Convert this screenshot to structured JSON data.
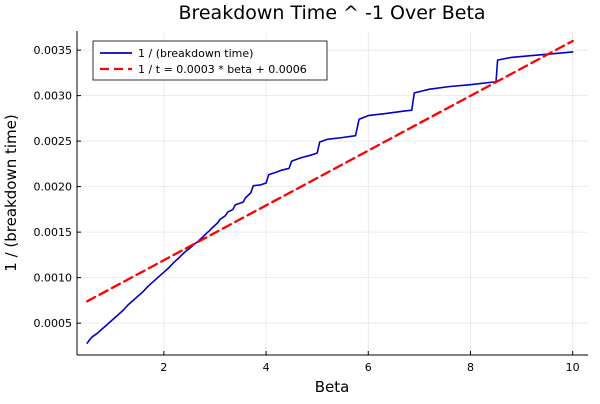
{
  "chart_data": {
    "type": "line",
    "title": "Breakdown Time ^ -1 Over Beta",
    "xlabel": "Beta",
    "ylabel": "1 / (breakdown time)",
    "xlim": [
      0.3,
      10.3
    ],
    "ylim": [
      0.00015,
      0.00371
    ],
    "x_ticks": [
      2,
      4,
      6,
      8,
      10
    ],
    "x_tick_labels": [
      "2",
      "4",
      "6",
      "8",
      "10"
    ],
    "y_ticks": [
      0.0005,
      0.001,
      0.0015,
      0.002,
      0.0025,
      0.003,
      0.0035
    ],
    "y_tick_labels": [
      "0.0005",
      "0.0010",
      "0.0015",
      "0.0020",
      "0.0025",
      "0.0030",
      "0.0035"
    ],
    "grid": true,
    "legend_position": "top-left",
    "series": [
      {
        "name": "1 / (breakdown time)",
        "color": "#0000cc",
        "style": "solid",
        "x": [
          0.5,
          0.55,
          0.6,
          0.7,
          0.8,
          0.9,
          1.0,
          1.1,
          1.2,
          1.3,
          1.4,
          1.5,
          1.6,
          1.7,
          1.8,
          1.9,
          2.0,
          2.1,
          2.2,
          2.3,
          2.35,
          2.45,
          2.5,
          2.6,
          2.65,
          2.75,
          2.8,
          2.9,
          2.95,
          3.05,
          3.1,
          3.2,
          3.25,
          3.35,
          3.4,
          3.55,
          3.6,
          3.7,
          3.75,
          3.9,
          4.0,
          4.05,
          4.2,
          4.3,
          4.45,
          4.5,
          4.7,
          4.9,
          5.0,
          5.05,
          5.2,
          5.5,
          5.75,
          5.82,
          6.0,
          6.3,
          6.7,
          6.85,
          6.9,
          7.2,
          7.6,
          8.0,
          8.45,
          8.5,
          8.53,
          8.8,
          9.2,
          9.6,
          10.0
        ],
        "y": [
          0.00028,
          0.00032,
          0.00035,
          0.00039,
          0.00044,
          0.00049,
          0.00054,
          0.00059,
          0.00064,
          0.0007,
          0.00075,
          0.0008,
          0.00085,
          0.00091,
          0.00096,
          0.00101,
          0.00106,
          0.00111,
          0.00117,
          0.00122,
          0.00125,
          0.0013,
          0.00132,
          0.00137,
          0.00139,
          0.00144,
          0.00147,
          0.00152,
          0.00155,
          0.0016,
          0.00164,
          0.00168,
          0.00172,
          0.00175,
          0.0018,
          0.00183,
          0.00188,
          0.00193,
          0.00201,
          0.00202,
          0.00204,
          0.00213,
          0.00216,
          0.00218,
          0.0022,
          0.00228,
          0.00232,
          0.00235,
          0.00237,
          0.00249,
          0.00252,
          0.00254,
          0.00256,
          0.00274,
          0.00278,
          0.0028,
          0.00283,
          0.00284,
          0.00303,
          0.00307,
          0.0031,
          0.00312,
          0.00315,
          0.00315,
          0.00339,
          0.00342,
          0.00344,
          0.00346,
          0.00348
        ]
      },
      {
        "name": "1 / t = 0.0003 * beta + 0.0006",
        "color": "#ff0000",
        "style": "dashed",
        "x": [
          0.5,
          10.0
        ],
        "y": [
          0.00074,
          0.0036
        ]
      }
    ]
  }
}
